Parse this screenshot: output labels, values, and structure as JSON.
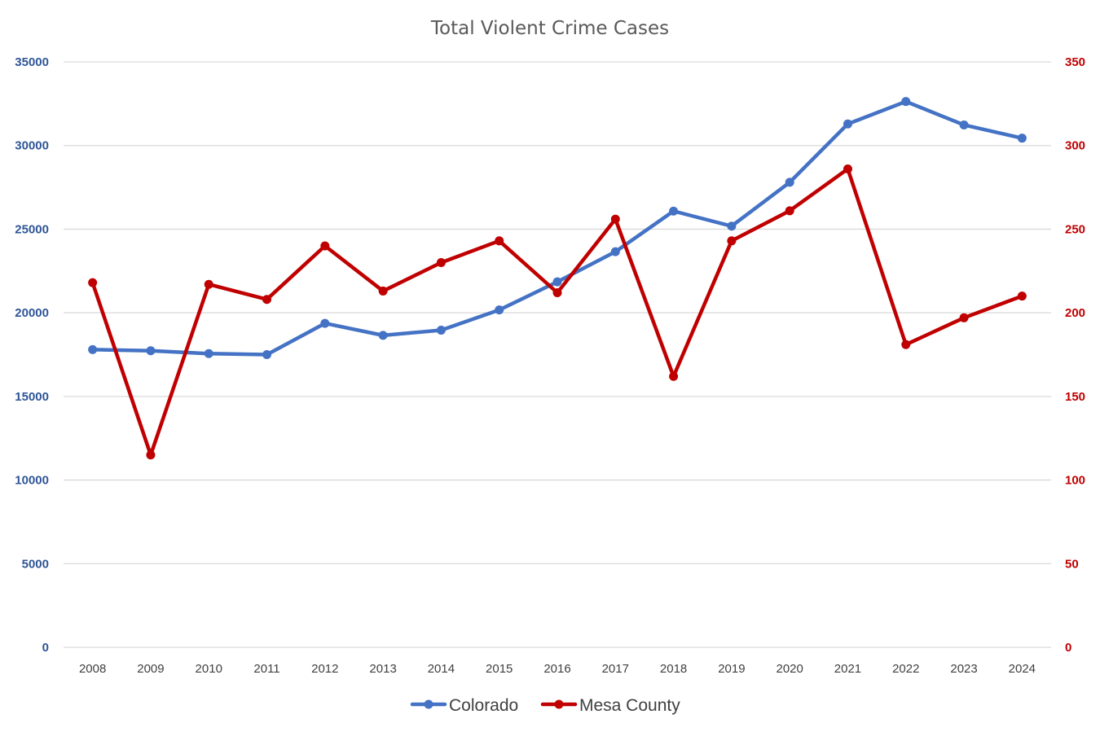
{
  "chart_data": {
    "type": "line",
    "title": "Total Violent Crime Cases",
    "categories": [
      "2008",
      "2009",
      "2010",
      "2011",
      "2012",
      "2013",
      "2014",
      "2015",
      "2016",
      "2017",
      "2018",
      "2019",
      "2020",
      "2021",
      "2022",
      "2023",
      "2024"
    ],
    "y_left": {
      "min": 0,
      "max": 35000,
      "ticks": [
        "0",
        "5000",
        "10000",
        "15000",
        "20000",
        "25000",
        "30000",
        "35000"
      ],
      "color": "#2f5597"
    },
    "y_right": {
      "min": 0,
      "max": 350,
      "ticks": [
        "0",
        "50",
        "100",
        "150",
        "200",
        "250",
        "300",
        "350"
      ],
      "color": "#c00000"
    },
    "grid": true,
    "legend_position": "bottom",
    "series": [
      {
        "name": "Colorado",
        "axis": "left",
        "color": "#4472c4",
        "values": [
          17800,
          17730,
          17560,
          17500,
          19370,
          18650,
          18960,
          20170,
          21850,
          23650,
          26080,
          25180,
          27800,
          31290,
          32630,
          31230,
          30440
        ]
      },
      {
        "name": "Mesa County",
        "axis": "right",
        "color": "#c00000",
        "values": [
          218,
          115,
          217,
          208,
          240,
          213,
          230,
          243,
          212,
          256,
          162,
          243,
          261,
          286,
          181,
          197,
          210
        ]
      }
    ]
  }
}
